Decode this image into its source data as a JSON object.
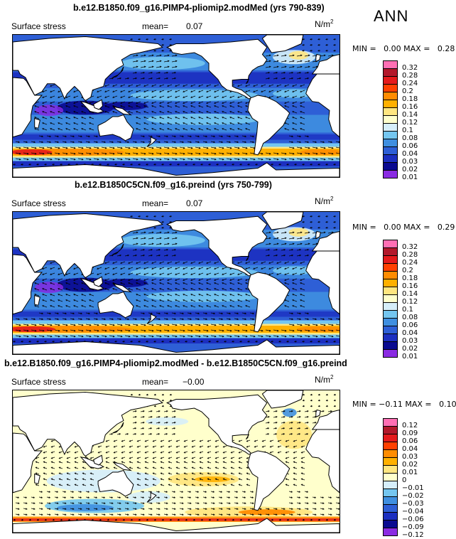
{
  "season": "ANN",
  "panels": [
    {
      "title": "b.e12.B1850.f09_g16.PIMP4-pliomip2.modMed (yrs 790-839)",
      "variable": "Surface stress",
      "mean_label": "mean=",
      "mean_value": "0.07",
      "unit": "N/m",
      "unit_sup": "2",
      "minmax": "MIN =   0.00 MAX =   0.28",
      "colorbar": {
        "labels": [
          "0.32",
          "0.28",
          "0.24",
          "0.2",
          "0.18",
          "0.16",
          "0.14",
          "0.12",
          "0.1",
          "0.08",
          "0.06",
          "0.04",
          "0.03",
          "0.02",
          "0.01"
        ],
        "colors": [
          "#ff6fb4",
          "#b2182b",
          "#e41a1c",
          "#ff4000",
          "#ff8c00",
          "#ffb000",
          "#ffe680",
          "#ffffcc",
          "#d6eefa",
          "#74c6f0",
          "#3f8fe0",
          "#2e5fd6",
          "#1c2fc0",
          "#0a0a90",
          "#8a2be2"
        ]
      },
      "stats": {
        "min": 0.0,
        "max": 0.28,
        "mean": 0.07
      }
    },
    {
      "title": "b.e12.B1850C5CN.f09_g16.preind (yrs 750-799)",
      "variable": "Surface stress",
      "mean_label": "mean=",
      "mean_value": "0.07",
      "unit": "N/m",
      "unit_sup": "2",
      "minmax": "MIN =   0.00 MAX =   0.29",
      "colorbar": {
        "labels": [
          "0.32",
          "0.28",
          "0.24",
          "0.2",
          "0.18",
          "0.16",
          "0.14",
          "0.12",
          "0.1",
          "0.08",
          "0.06",
          "0.04",
          "0.03",
          "0.02",
          "0.01"
        ],
        "colors": [
          "#ff6fb4",
          "#b2182b",
          "#e41a1c",
          "#ff4000",
          "#ff8c00",
          "#ffb000",
          "#ffe680",
          "#ffffcc",
          "#d6eefa",
          "#74c6f0",
          "#3f8fe0",
          "#2e5fd6",
          "#1c2fc0",
          "#0a0a90",
          "#8a2be2"
        ]
      },
      "stats": {
        "min": 0.0,
        "max": 0.29,
        "mean": 0.07
      }
    },
    {
      "title": "b.e12.B1850.f09_g16.PIMP4-pliomip2.modMed - b.e12.B1850C5CN.f09_g16.preind",
      "variable": "Surface stress",
      "mean_label": "mean=",
      "mean_value": "−0.00",
      "unit": "N/m",
      "unit_sup": "2",
      "minmax": "MIN = −0.11 MAX =   0.10",
      "colorbar": {
        "labels": [
          "0.12",
          "0.09",
          "0.06",
          "0.04",
          "0.03",
          "0.02",
          "0.01",
          "0",
          "−0.01",
          "−0.02",
          "−0.03",
          "−0.04",
          "−0.06",
          "−0.09",
          "−0.12"
        ],
        "colors": [
          "#ff6fb4",
          "#b2182b",
          "#e41a1c",
          "#ff4000",
          "#ff8c00",
          "#ffb000",
          "#ffe680",
          "#ffffcc",
          "#d6eefa",
          "#74c6f0",
          "#3f8fe0",
          "#2e5fd6",
          "#1c2fc0",
          "#0a0a90",
          "#8a2be2"
        ]
      },
      "stats": {
        "min": -0.11,
        "max": 0.1,
        "mean": -0.0
      }
    }
  ]
}
